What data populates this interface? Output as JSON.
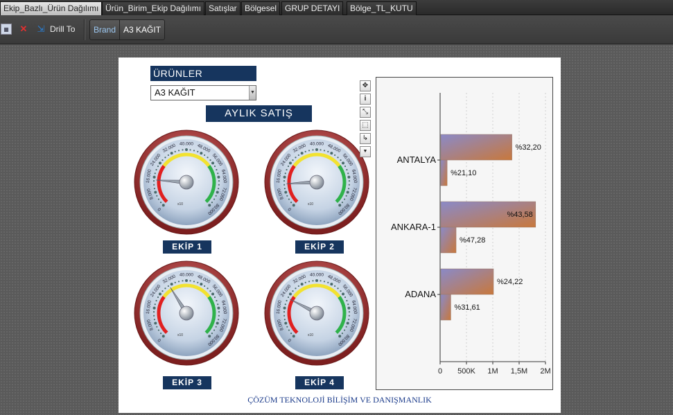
{
  "tabs": [
    {
      "label": "Ekip_Bazlı_Ürün Dağılımı",
      "active": true
    },
    {
      "label": "Ürün_Birim_Ekip Dağılımı"
    },
    {
      "label": "Satışlar"
    },
    {
      "label": "Bölgesel"
    },
    {
      "label": "GRUP DETAYI"
    },
    {
      "label": "Bölge_TL_KUTU"
    }
  ],
  "toolbar": {
    "drill_label": "Drill To",
    "breadcrumb": {
      "field": "Brand",
      "value": "A3 KAĞIT"
    }
  },
  "dashboard": {
    "products_title": "ÜRÜNLER",
    "products_selected": "A3 KAĞIT",
    "monthly_title": "AYLIK SATIŞ",
    "footer": "ÇÖZÜM TEKNOLOJİ BİLİŞİM VE DANIŞMANLIK"
  },
  "gauges": [
    {
      "label": "EKİP 1",
      "value": 14500
    },
    {
      "label": "EKİP 2",
      "value": 12500
    },
    {
      "label": "EKİP 3",
      "value": 30500
    },
    {
      "label": "EKİP 4",
      "value": 21500
    }
  ],
  "gauge_scale": {
    "min": 0,
    "max": 80000,
    "ticks": [
      "0",
      "8.000",
      "16.000",
      "24.000",
      "32.000",
      "40.000",
      "48.000",
      "56.000",
      "64.000",
      "72.000",
      "80.000"
    ],
    "multiplier": "x10",
    "bands": {
      "red": "#e02020",
      "yellow": "#f2e230",
      "green": "#2fb24a"
    }
  },
  "chart_data": {
    "type": "bar",
    "orientation": "horizontal",
    "categories": [
      "ANTALYA",
      "ANKARA-1",
      "ADANA"
    ],
    "series": [
      {
        "values": [
          1350000,
          1800000,
          1000000
        ],
        "labels": [
          "%32,20",
          "%43,58",
          "%24,22"
        ]
      },
      {
        "values": [
          120000,
          290000,
          190000
        ],
        "labels": [
          "%21,10",
          "%47,28",
          "%31,61"
        ]
      }
    ],
    "xlim": [
      0,
      2000000
    ],
    "xticks": [
      "0",
      "500K",
      "1M",
      "1,5M",
      "2M"
    ],
    "grid": true,
    "bar_color_start": "#8a8ac8",
    "bar_color_end": "#c8783c"
  }
}
